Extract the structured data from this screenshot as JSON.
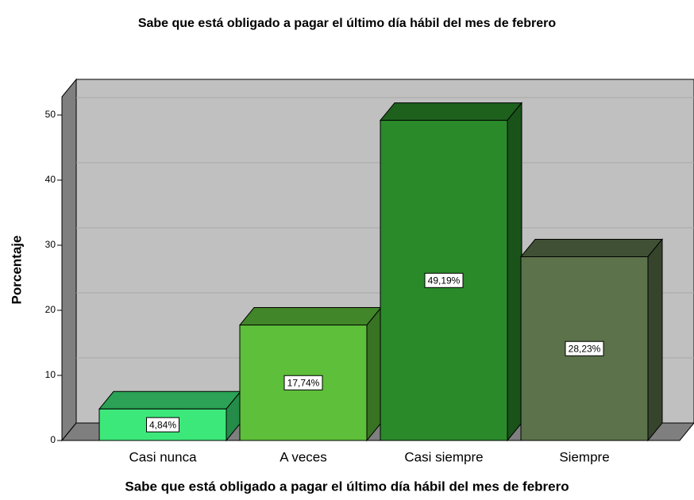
{
  "chart_data": {
    "type": "bar3d",
    "title": "Sabe que está obligado a pagar el último día hábil del mes de febrero",
    "x_label": "Sabe que está obligado a pagar el último día hábil del mes de febrero",
    "y_label": "Porcentaje",
    "categories": [
      "Casi nunca",
      "A veces",
      "Casi siempre",
      "Siempre"
    ],
    "values": [
      4.84,
      17.74,
      49.19,
      28.23
    ],
    "value_labels": [
      "4,84%",
      "17,74%",
      "49,19%",
      "28,23%"
    ],
    "colors": [
      "#3de87a",
      "#5dbf3a",
      "#2a8a2a",
      "#5b724a"
    ],
    "ylim": [
      0,
      52.8
    ],
    "yticks": [
      0,
      10,
      20,
      30,
      40,
      50
    ],
    "grid": true
  }
}
